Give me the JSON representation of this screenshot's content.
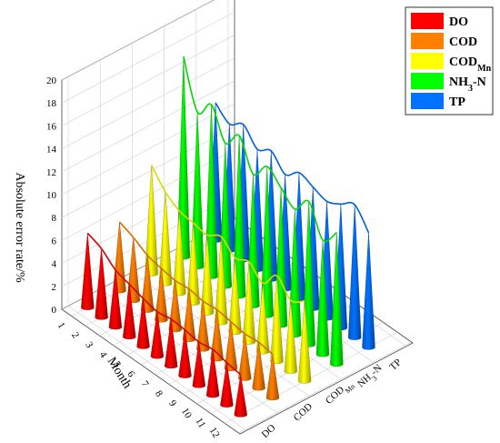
{
  "chart_data": {
    "type": "3d-cone-bar",
    "ylabel": "Absolute error rate/%",
    "xlabel": "Month",
    "zlabel": "",
    "ylim": [
      0,
      20
    ],
    "y_ticks": [
      "0",
      "2",
      "4",
      "6",
      "8",
      "10",
      "12",
      "14",
      "16",
      "18",
      "20"
    ],
    "categories": [
      "1",
      "2",
      "3",
      "4",
      "5",
      "6",
      "7",
      "8",
      "9",
      "10",
      "11",
      "12"
    ],
    "series": [
      {
        "name": "DO",
        "label_main": "DO",
        "label_sub": "",
        "color": "#ff0000",
        "values": [
          6.5,
          6.0,
          5.0,
          4.6,
          4.2,
          3.9,
          4.1,
          4.0,
          3.8,
          4.0,
          3.7,
          3.5
        ]
      },
      {
        "name": "COD",
        "label_main": "COD",
        "label_sub": "",
        "color": "#ff7f00",
        "values": [
          6.0,
          5.5,
          4.8,
          4.5,
          4.3,
          4.4,
          4.2,
          4.3,
          4.1,
          3.9,
          4.0,
          3.8
        ]
      },
      {
        "name": "CODMn",
        "label_main": "COD",
        "label_sub": "Mn",
        "color": "#ffff00",
        "values": [
          9.5,
          8.0,
          7.2,
          7.0,
          6.8,
          7.5,
          6.5,
          7.0,
          6.0,
          7.5,
          6.2,
          7.0
        ]
      },
      {
        "name": "NH3-N",
        "label_main": "NH",
        "label_sub": "3",
        "label_tail": "-N",
        "color": "#00ff00",
        "values": [
          17.5,
          13.5,
          15.0,
          12.5,
          14.0,
          11.5,
          13.0,
          12.0,
          11.0,
          12.5,
          10.0,
          11.5
        ]
      },
      {
        "name": "TP",
        "label_main": "TP",
        "label_sub": "",
        "color": "#0072ff",
        "values": [
          12.0,
          11.0,
          11.8,
          10.5,
          11.2,
          10.0,
          11.0,
          10.6,
          10.2,
          10.8,
          11.6,
          10.0
        ]
      }
    ],
    "legend": {
      "position": "top-right"
    },
    "grid": true
  }
}
